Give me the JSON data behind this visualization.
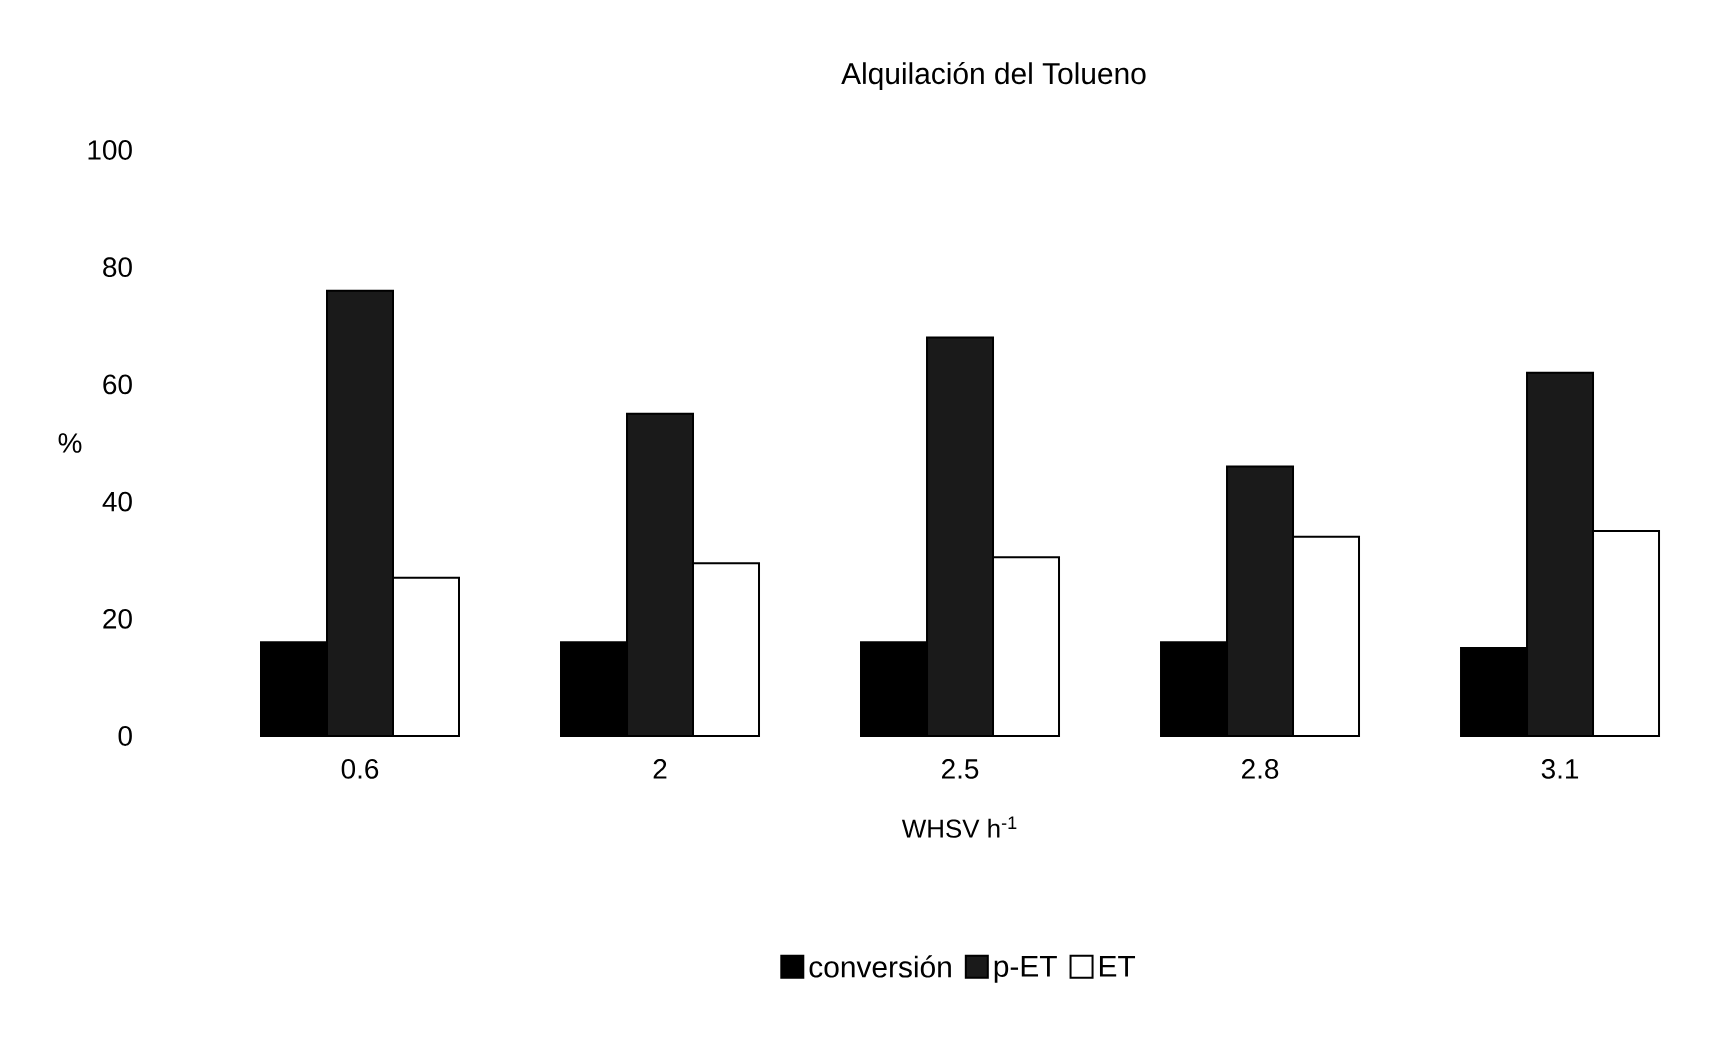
{
  "chart_data": {
    "type": "bar",
    "title": "Alquilación del Tolueno",
    "xlabel": "WHSV h$^{-1}$",
    "ylabel": "%",
    "categories": [
      "0.6",
      "2",
      "2.5",
      "2.8",
      "3.1"
    ],
    "series": [
      {
        "name": "conversión",
        "color": "#000000",
        "values": [
          16,
          16,
          16,
          16,
          15
        ]
      },
      {
        "name": "p-ET",
        "color": "#1a1a1a",
        "values": [
          76,
          55,
          68,
          46,
          62
        ]
      },
      {
        "name": "ET",
        "color": "#ffffff",
        "values": [
          27,
          29.5,
          30.5,
          34,
          35
        ]
      }
    ],
    "ylim": [
      0,
      100
    ],
    "yticks": [
      0,
      20,
      40,
      60,
      80,
      100
    ],
    "legend": "bottom"
  }
}
